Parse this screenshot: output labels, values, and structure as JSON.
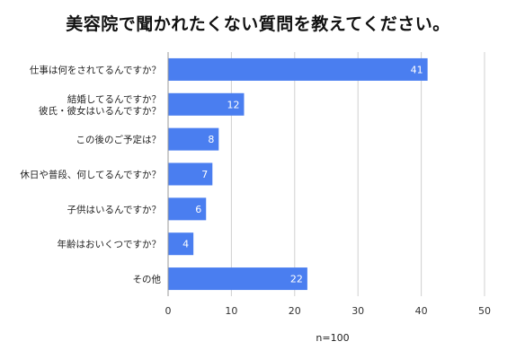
{
  "chart_data": {
    "type": "bar",
    "orientation": "horizontal",
    "title": "美容院で聞かれたくない質問を教えてください。",
    "categories": [
      [
        "仕事は何をされてるんですか？"
      ],
      [
        "結婚してるんですか？",
        "彼氏・彼女はいるんですか？"
      ],
      [
        "この後のご予定は？"
      ],
      [
        "休日や普段、何してるんですか？"
      ],
      [
        "子供はいるんですか？"
      ],
      [
        "年齢はおいくつですか？"
      ],
      [
        "その他"
      ]
    ],
    "values": [
      41,
      12,
      8,
      7,
      6,
      4,
      22
    ],
    "xlim": [
      0,
      50
    ],
    "xticks": [
      0,
      10,
      20,
      30,
      40,
      50
    ],
    "note": "n=100",
    "bar_color": "#4a7ef0",
    "grid_color": "#d0d0d0",
    "grid": true,
    "legend": "none"
  }
}
